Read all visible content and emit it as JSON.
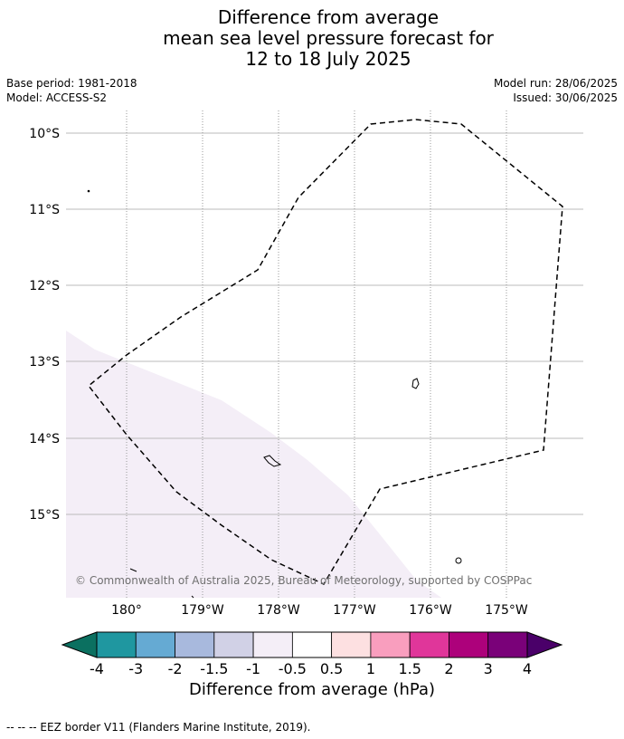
{
  "title": {
    "line1": "Difference from average",
    "line2": "mean sea level pressure forecast for",
    "line3": "12 to 18 July 2025"
  },
  "meta": {
    "base_period": "Base period: 1981-2018",
    "model": "Model: ACCESS-S2",
    "model_run": "Model run: 28/06/2025",
    "issued": "Issued: 30/06/2025"
  },
  "map": {
    "lat_labels": [
      "10°S",
      "11°S",
      "12°S",
      "13°S",
      "14°S",
      "15°S"
    ],
    "lon_labels": [
      "180°",
      "179°W",
      "178°W",
      "177°W",
      "176°W",
      "175°W"
    ],
    "copyright": "© Commonwealth of Australia 2025, Bureau of Meteorology, supported by COSPPac",
    "eez_line_color": "#000000",
    "anomaly_fill_color": "#f4eef7",
    "anomaly_fill_value": "-0.5 to -1 hPa"
  },
  "colorbar": {
    "tick_labels": [
      "-4",
      "-3",
      "-2",
      "-1.5",
      "-1",
      "-0.5",
      "0.5",
      "1",
      "1.5",
      "2",
      "3",
      "4"
    ],
    "colors": [
      "#0b7060",
      "#1f97a0",
      "#65aad3",
      "#a8b9dd",
      "#d1d1e6",
      "#f4eef7",
      "#ffffff",
      "#fde0e1",
      "#f99ebe",
      "#e0369a",
      "#ad017b",
      "#7a0179",
      "#4a0069"
    ],
    "label": "Difference from average (hPa)"
  },
  "footnote": "--  --  -- EEZ border V11 (Flanders Marine Institute, 2019)."
}
